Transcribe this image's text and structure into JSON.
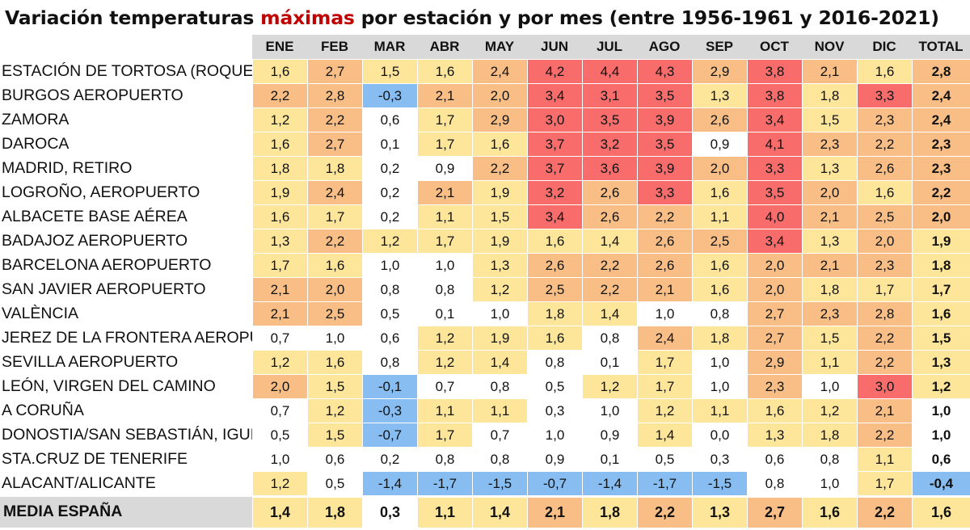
{
  "title": {
    "before": "Variación temperaturas ",
    "highlight": "máximas",
    "after": " por estación y por mes (entre 1956-1961 y 2016-2021)"
  },
  "colors": {
    "highlight_text": "#c00000",
    "header_bg": "#d9d9d9",
    "negative": "#87bdf0",
    "low": "#ffffff",
    "mild": "#fde599",
    "warm": "#f9be85",
    "hot": "#f86c6b"
  },
  "chart_data": {
    "type": "table",
    "title": "Variación temperaturas máximas por estación y por mes (entre 1956-1961 y 2016-2021)",
    "columns": [
      "ENE",
      "FEB",
      "MAR",
      "ABR",
      "MAY",
      "JUN",
      "JUL",
      "AGO",
      "SEP",
      "OCT",
      "NOV",
      "DIC",
      "TOTAL"
    ],
    "rows": [
      {
        "station": "ESTACIÓN DE TORTOSA (ROQUETES)",
        "values": [
          "1,6",
          "2,7",
          "1,5",
          "1,6",
          "2,4",
          "4,2",
          "4,4",
          "4,3",
          "2,9",
          "3,8",
          "2,1",
          "1,6"
        ],
        "total": "2,8"
      },
      {
        "station": "BURGOS AEROPUERTO",
        "values": [
          "2,2",
          "2,8",
          "-0,3",
          "2,1",
          "2,0",
          "3,4",
          "3,1",
          "3,5",
          "1,3",
          "3,8",
          "1,8",
          "3,3"
        ],
        "total": "2,4"
      },
      {
        "station": "ZAMORA",
        "values": [
          "1,2",
          "2,2",
          "0,6",
          "1,7",
          "2,9",
          "3,0",
          "3,5",
          "3,9",
          "2,6",
          "3,4",
          "1,5",
          "2,3"
        ],
        "total": "2,4"
      },
      {
        "station": "DAROCA",
        "values": [
          "1,6",
          "2,7",
          "0,1",
          "1,7",
          "1,6",
          "3,7",
          "3,2",
          "3,5",
          "0,9",
          "4,1",
          "2,3",
          "2,2"
        ],
        "total": "2,3"
      },
      {
        "station": "MADRID, RETIRO",
        "values": [
          "1,8",
          "1,8",
          "0,2",
          "0,9",
          "2,2",
          "3,7",
          "3,6",
          "3,9",
          "2,0",
          "3,3",
          "1,3",
          "2,6"
        ],
        "total": "2,3"
      },
      {
        "station": "LOGROÑO, AEROPUERTO",
        "values": [
          "1,9",
          "2,4",
          "0,2",
          "2,1",
          "1,9",
          "3,2",
          "2,6",
          "3,3",
          "1,6",
          "3,5",
          "2,0",
          "1,6"
        ],
        "total": "2,2"
      },
      {
        "station": "ALBACETE BASE AÉREA",
        "values": [
          "1,6",
          "1,7",
          "0,2",
          "1,1",
          "1,5",
          "3,4",
          "2,6",
          "2,2",
          "1,1",
          "4,0",
          "2,1",
          "2,5"
        ],
        "total": "2,0"
      },
      {
        "station": "BADAJOZ AEROPUERTO",
        "values": [
          "1,3",
          "2,2",
          "1,2",
          "1,7",
          "1,9",
          "1,6",
          "1,4",
          "2,6",
          "2,5",
          "3,4",
          "1,3",
          "2,0"
        ],
        "total": "1,9"
      },
      {
        "station": "BARCELONA AEROPUERTO",
        "values": [
          "1,7",
          "1,6",
          "1,0",
          "1,0",
          "1,3",
          "2,6",
          "2,2",
          "2,6",
          "1,6",
          "2,0",
          "2,1",
          "2,3"
        ],
        "total": "1,8"
      },
      {
        "station": "SAN JAVIER AEROPUERTO",
        "values": [
          "2,1",
          "2,0",
          "0,8",
          "0,8",
          "1,2",
          "2,5",
          "2,2",
          "2,1",
          "1,6",
          "2,0",
          "1,8",
          "1,7"
        ],
        "total": "1,7"
      },
      {
        "station": "VALÈNCIA",
        "values": [
          "2,1",
          "2,5",
          "0,5",
          "0,1",
          "1,0",
          "1,8",
          "1,4",
          "1,0",
          "0,8",
          "2,7",
          "2,3",
          "2,8"
        ],
        "total": "1,6"
      },
      {
        "station": "JEREZ DE LA FRONTERA AEROPUERTO",
        "values": [
          "0,7",
          "1,0",
          "0,6",
          "1,2",
          "1,9",
          "1,6",
          "0,8",
          "2,4",
          "1,8",
          "2,7",
          "1,5",
          "2,2"
        ],
        "total": "1,5"
      },
      {
        "station": "SEVILLA AEROPUERTO",
        "values": [
          "1,2",
          "1,6",
          "0,8",
          "1,2",
          "1,4",
          "0,8",
          "0,1",
          "1,7",
          "1,0",
          "2,9",
          "1,1",
          "2,2"
        ],
        "total": "1,3"
      },
      {
        "station": "LEÓN, VIRGEN DEL CAMINO",
        "values": [
          "2,0",
          "1,5",
          "-0,1",
          "0,7",
          "0,8",
          "0,5",
          "1,2",
          "1,7",
          "1,0",
          "2,3",
          "1,0",
          "3,0"
        ],
        "total": "1,2"
      },
      {
        "station": "A CORUÑA",
        "values": [
          "0,7",
          "1,2",
          "-0,3",
          "1,1",
          "1,1",
          "0,3",
          "1,0",
          "1,2",
          "1,1",
          "1,6",
          "1,2",
          "2,1"
        ],
        "total": "1,0"
      },
      {
        "station": "DONOSTIA/SAN SEBASTIÁN, IGUELDO",
        "values": [
          "0,5",
          "1,5",
          "-0,7",
          "1,7",
          "0,7",
          "1,0",
          "0,9",
          "1,4",
          "0,0",
          "1,3",
          "1,8",
          "2,2"
        ],
        "total": "1,0"
      },
      {
        "station": "STA.CRUZ DE TENERIFE",
        "values": [
          "1,0",
          "0,6",
          "0,2",
          "0,8",
          "0,8",
          "0,9",
          "0,1",
          "0,5",
          "0,3",
          "0,6",
          "0,8",
          "1,1"
        ],
        "total": "0,6"
      },
      {
        "station": "ALACANT/ALICANTE",
        "values": [
          "1,2",
          "0,5",
          "-1,4",
          "-1,7",
          "-1,5",
          "-0,7",
          "-1,4",
          "-1,7",
          "-1,5",
          "0,8",
          "1,0",
          "1,7"
        ],
        "total": "-0,4"
      }
    ],
    "average": {
      "label": "MEDIA ESPAÑA",
      "values": [
        "1,4",
        "1,8",
        "0,3",
        "1,1",
        "1,4",
        "2,1",
        "1,8",
        "2,2",
        "1,3",
        "2,7",
        "1,6",
        "2,2"
      ],
      "total": "1,6"
    }
  }
}
